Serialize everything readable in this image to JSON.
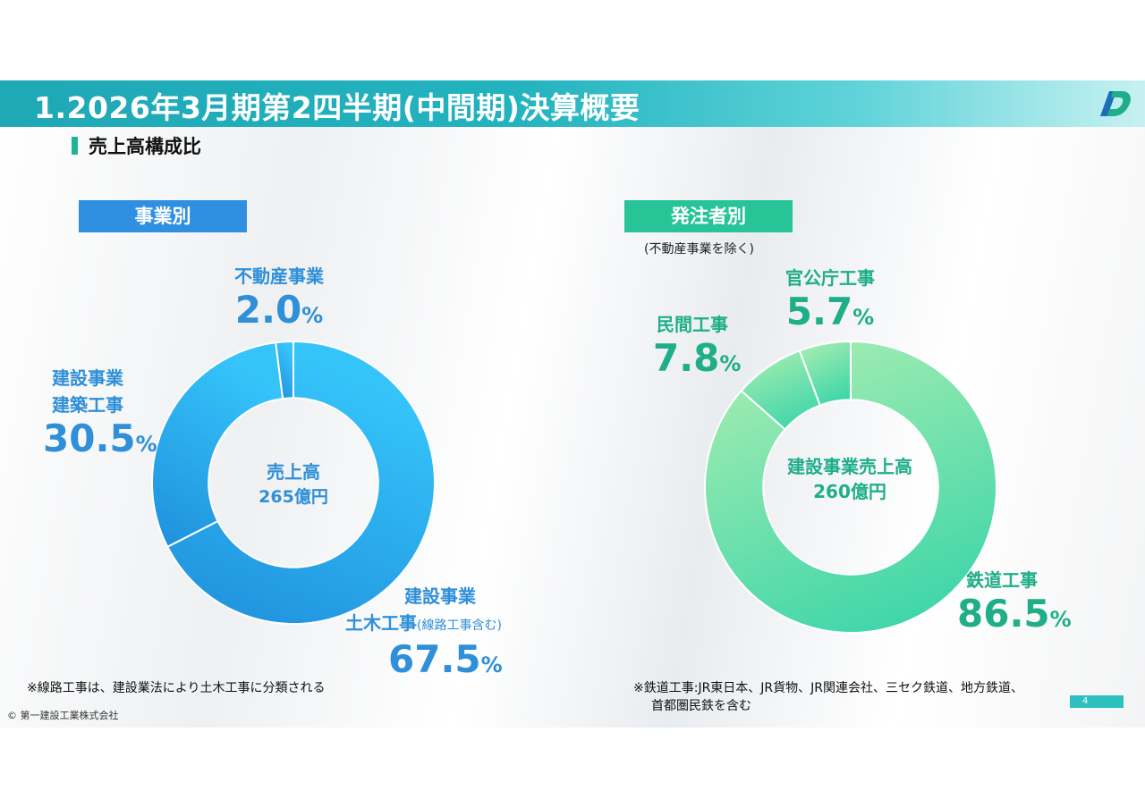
{
  "header": {
    "title": "1.2026年3月期第2四半期(中間期)決算概要"
  },
  "section": {
    "title": "売上高構成比"
  },
  "colors": {
    "blue_dark": "#1f93e0",
    "blue_light": "#33c0f8",
    "green_dark": "#3fd4a8",
    "green_light": "#a4ecb0",
    "teal": "#1fa8b6"
  },
  "chart_data": [
    {
      "type": "pie",
      "title": "事業別",
      "center": {
        "line1": "売上高",
        "line2": "265億円"
      },
      "slices": [
        {
          "name": "建設事業 土木工事",
          "note": "(線路工事含む)",
          "value": 67.5
        },
        {
          "name": "建設事業 建築工事",
          "value": 30.5
        },
        {
          "name": "不動産事業",
          "value": 2.0
        }
      ],
      "labels": {
        "civil_l1": "建設事業",
        "civil_l2": "土木工事",
        "civil_paren": "(線路工事含む)",
        "civil_pct": "67.5",
        "arch_l1": "建設事業",
        "arch_l2": "建築工事",
        "arch_pct": "30.5",
        "re_name": "不動産事業",
        "re_pct": "2.0"
      },
      "unit": "%"
    },
    {
      "type": "pie",
      "title": "発注者別",
      "subtitle": "(不動産事業を除く)",
      "center": {
        "line1": "建設事業売上高",
        "line2": "260億円"
      },
      "slices": [
        {
          "name": "鉄道工事",
          "value": 86.5
        },
        {
          "name": "民間工事",
          "value": 7.8
        },
        {
          "name": "官公庁工事",
          "value": 5.7
        }
      ],
      "labels": {
        "rail_name": "鉄道工事",
        "rail_pct": "86.5",
        "private_name": "民間工事",
        "private_pct": "7.8",
        "public_name": "官公庁工事",
        "public_pct": "5.7"
      },
      "unit": "%"
    }
  ],
  "footnotes": {
    "left": "※線路工事は、建設業法により土木工事に分類される",
    "right_l1": "※鉄道工事:JR東日本、JR貨物、JR関連会社、三セク鉄道、地方鉄道、",
    "right_l2": "首都圏民鉄を含む"
  },
  "copyright": "© 第一建設工業株式会社",
  "page_number": "4"
}
